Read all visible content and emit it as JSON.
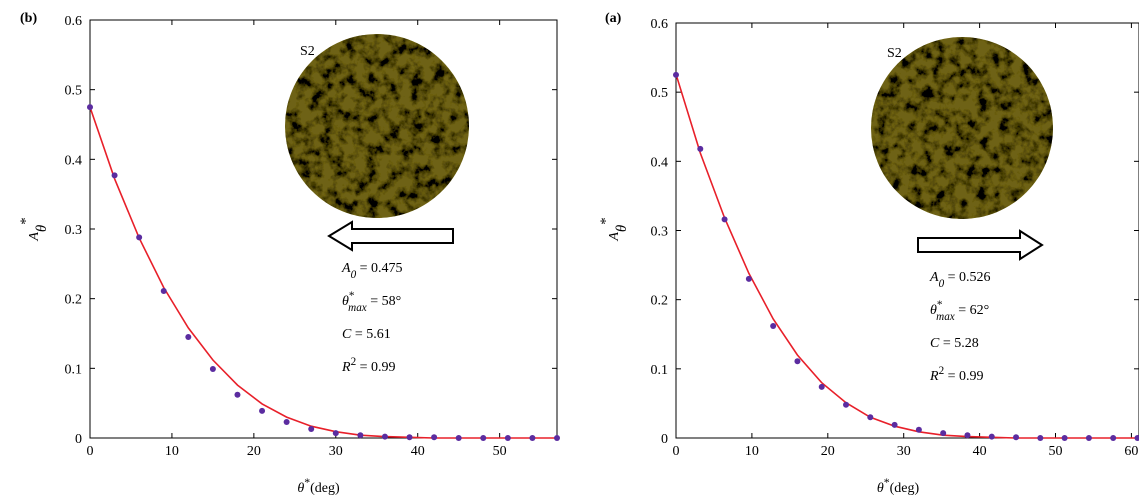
{
  "chart_data": [
    {
      "type": "scatter",
      "panel_label": "(b)",
      "inset_label": "S2",
      "xlabel": [
        {
          "text": "θ"
        },
        {
          "sup": "*"
        },
        {
          "text": "(deg)"
        }
      ],
      "ylabel": [
        {
          "text": "A"
        },
        {
          "sub": "θ"
        },
        {
          "sup": "*"
        }
      ],
      "annotations": [
        [
          {
            "text": "A"
          },
          {
            "sub": "0"
          },
          {
            "text": " = 0.475"
          }
        ],
        [
          {
            "text": "θ"
          },
          {
            "sup": "*"
          },
          {
            "sub": "max"
          },
          {
            "text": " = 58°"
          }
        ],
        [
          {
            "text": "C"
          },
          {
            "text": " = 5.61"
          }
        ],
        [
          {
            "text": "R"
          },
          {
            "sup": "2"
          },
          {
            "text": " = 0.99"
          }
        ]
      ],
      "xlim": [
        0,
        57
      ],
      "ylim": [
        0,
        0.6
      ],
      "xticks": [
        0,
        10,
        20,
        30,
        40,
        50
      ],
      "yticks": [
        0,
        0.1,
        0.2,
        0.3,
        0.4,
        0.5,
        0.6
      ],
      "series": [
        {
          "style": "points",
          "color": "#5b2ca0",
          "x": [
            0,
            3,
            6,
            9,
            12,
            15,
            18,
            21,
            24,
            27,
            30,
            33,
            36,
            39,
            42,
            45,
            48,
            51,
            54,
            57
          ],
          "values": [
            0.475,
            0.377,
            0.288,
            0.211,
            0.145,
            0.099,
            0.062,
            0.039,
            0.023,
            0.013,
            0.007,
            0.004,
            0.002,
            0.001,
            0.001,
            0,
            0,
            0,
            0,
            0
          ]
        },
        {
          "style": "line",
          "color": "#e8202a",
          "x": [
            0,
            3,
            6,
            9,
            12,
            15,
            18,
            21,
            24,
            27,
            30,
            33,
            36,
            39,
            42,
            45,
            48,
            51,
            54,
            57
          ],
          "values": [
            0.475,
            0.372,
            0.287,
            0.216,
            0.158,
            0.112,
            0.076,
            0.049,
            0.03,
            0.017,
            0.009,
            0.004,
            0.002,
            0.001,
            0,
            0,
            0,
            0,
            0,
            0
          ]
        }
      ]
    },
    {
      "type": "scatter",
      "panel_label": "(a)",
      "inset_label": "S2",
      "xlabel": [
        {
          "text": "θ"
        },
        {
          "sup": "*"
        },
        {
          "text": "(deg)"
        }
      ],
      "ylabel": [
        {
          "text": "A"
        },
        {
          "sub": "θ"
        },
        {
          "sup": "*"
        }
      ],
      "annotations": [
        [
          {
            "text": "A"
          },
          {
            "sub": "0"
          },
          {
            "text": " = 0.526"
          }
        ],
        [
          {
            "text": "θ"
          },
          {
            "sup": "*"
          },
          {
            "sub": "max"
          },
          {
            "text": " = 62°"
          }
        ],
        [
          {
            "text": "C"
          },
          {
            "text": " = 5.28"
          }
        ],
        [
          {
            "text": "R"
          },
          {
            "sup": "2"
          },
          {
            "text": " = 0.99"
          }
        ]
      ],
      "xlim": [
        0,
        61
      ],
      "ylim": [
        0,
        0.6
      ],
      "xticks": [
        0,
        10,
        20,
        30,
        40,
        50,
        60
      ],
      "yticks": [
        0,
        0.1,
        0.2,
        0.3,
        0.4,
        0.5,
        0.6
      ],
      "series": [
        {
          "style": "points",
          "color": "#5b2ca0",
          "x": [
            0,
            3.2,
            6.4,
            9.6,
            12.8,
            16,
            19.2,
            22.4,
            25.6,
            28.8,
            32,
            35.2,
            38.4,
            41.6,
            44.8,
            48,
            51.2,
            54.4,
            57.6,
            60.8
          ],
          "values": [
            0.525,
            0.418,
            0.316,
            0.23,
            0.162,
            0.111,
            0.074,
            0.048,
            0.03,
            0.019,
            0.012,
            0.007,
            0.004,
            0.002,
            0.001,
            0,
            0,
            0,
            0,
            0
          ]
        },
        {
          "style": "line",
          "color": "#e8202a",
          "x": [
            0,
            3.2,
            6.4,
            9.6,
            12.8,
            16,
            19.2,
            22.4,
            25.6,
            28.8,
            32,
            35.2,
            38.4,
            41.6,
            44.8,
            48,
            51.2,
            54.4,
            57.6,
            60.8
          ],
          "values": [
            0.526,
            0.412,
            0.318,
            0.238,
            0.172,
            0.12,
            0.08,
            0.051,
            0.03,
            0.017,
            0.009,
            0.004,
            0.002,
            0.001,
            0,
            0,
            0,
            0,
            0,
            0
          ]
        }
      ]
    }
  ]
}
